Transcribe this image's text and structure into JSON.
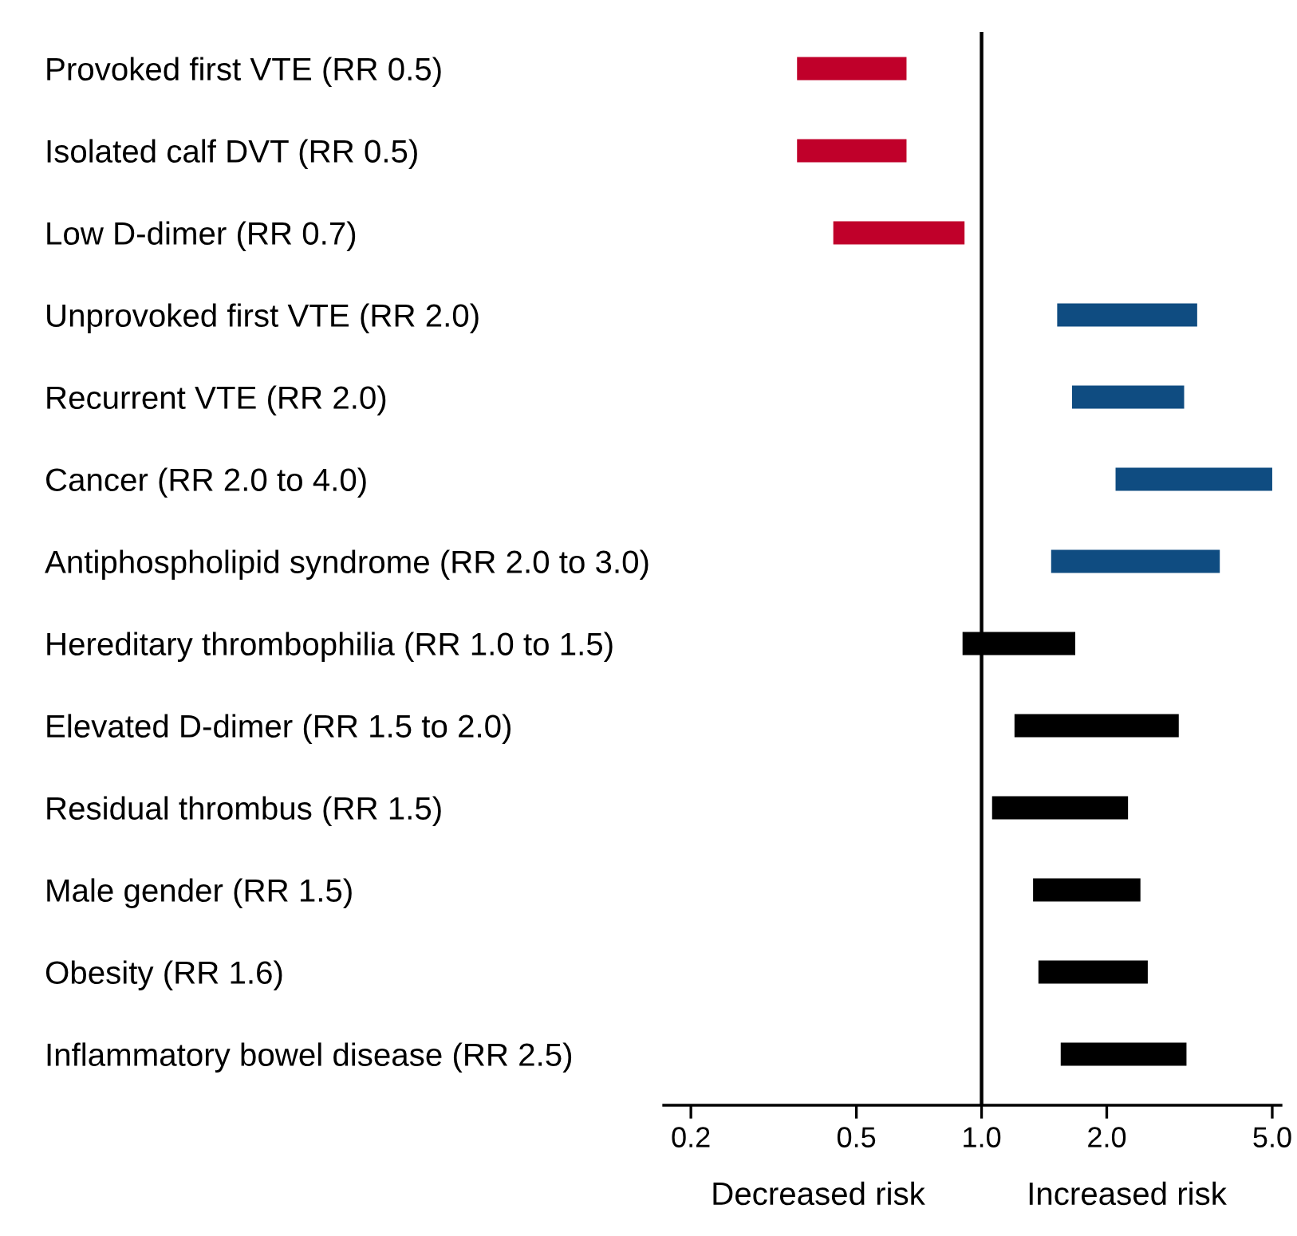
{
  "chart_data": {
    "type": "bar",
    "orientation": "horizontal",
    "categories": [
      "Provoked first VTE (RR 0.5)",
      "Isolated calf DVT (RR 0.5)",
      "Low D-dimer (RR 0.7)",
      "Unprovoked first VTE (RR 2.0)",
      "Recurrent VTE (RR 2.0)",
      "Cancer (RR 2.0 to 4.0)",
      "Antiphospholipid syndrome (RR 2.0 to 3.0)",
      "Hereditary thrombophilia (RR 1.0 to 1.5)",
      "Elevated D-dimer (RR 1.5 to 2.0)",
      "Residual thrombus (RR 1.5)",
      "Male gender (RR 1.5)",
      "Obesity (RR 1.6)",
      "Inflammatory bowel disease (RR 2.5)"
    ],
    "base": [
      0.36,
      0.36,
      0.44,
      1.52,
      1.65,
      2.1,
      1.47,
      0.9,
      1.2,
      1.06,
      1.33,
      1.37,
      1.55
    ],
    "values": [
      0.3,
      0.3,
      0.47,
      1.78,
      1.42,
      2.9,
      2.27,
      0.78,
      1.78,
      1.19,
      1.08,
      1.14,
      1.56
    ],
    "colors": [
      "#c0002a",
      "#c0002a",
      "#c0002a",
      "#0f4c81",
      "#0f4c81",
      "#0f4c81",
      "#0f4c81",
      "#000000",
      "#000000",
      "#000000",
      "#000000",
      "#000000",
      "#000000"
    ],
    "xlim": [
      0.172,
      5.25
    ],
    "xticks": [
      0.2,
      0.5,
      {
        "value": 1,
        "label": "1.0"
      },
      {
        "value": 2,
        "label": "2.0"
      },
      {
        "value": 5,
        "label": "5.0"
      }
    ],
    "ref_lines": [
      {
        "axis": "x",
        "value": 1,
        "color": "#000000"
      }
    ],
    "annotations": [
      "Decreased risk",
      "Increased risk"
    ],
    "log": "x",
    "grid": false,
    "legend": false
  }
}
